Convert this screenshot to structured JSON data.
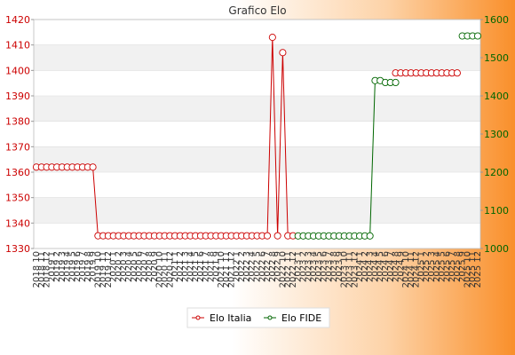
{
  "chart_data": {
    "type": "line",
    "title": "Grafico Elo",
    "x_labels": [
      "2018 10",
      "2018 11",
      "2018 12",
      "2019 1",
      "2019 2",
      "2019 3",
      "2019 4",
      "2019 5",
      "2019 6",
      "2019 7",
      "2019 8",
      "2019 9",
      "2019 10",
      "2019 11",
      "2019 12",
      "2020 1",
      "2020 2",
      "2020 3",
      "2020 4",
      "2020 5",
      "2020 6",
      "2020 7",
      "2020 8",
      "2020 9",
      "2020 10",
      "2020 11",
      "2020 12",
      "2021 1",
      "2021 2",
      "2021 3",
      "2021 4",
      "2021 5",
      "2021 6",
      "2021 7",
      "2021 8",
      "2021 9",
      "2021 10",
      "2021 11",
      "2021 12",
      "2022 1",
      "2022 2",
      "2022 3",
      "2022 4",
      "2022 5",
      "2022 6",
      "2022 7",
      "2022 8",
      "2022 9",
      "2022 10",
      "2022 11",
      "2022 12",
      "2023 1",
      "2023 2",
      "2023 3",
      "2023 4",
      "2023 5",
      "2023 6",
      "2023 7",
      "2023 8",
      "2023 9",
      "2023 10",
      "2023 11",
      "2023 12",
      "2024 1",
      "2024 2",
      "2024 3",
      "2024 4",
      "2024 5",
      "2024 6",
      "2024 7",
      "2024 8",
      "2024 9",
      "2024 10",
      "2024 11",
      "2024 12",
      "2025 1",
      "2025 2",
      "2025 3",
      "2025 4",
      "2025 5",
      "2025 6",
      "2025 7",
      "2025 8",
      "2025 9",
      "2025 10",
      "2025 11",
      "2025 12"
    ],
    "series": [
      {
        "name": "Elo Italia",
        "axis": "left",
        "color": "#cc0000",
        "values": [
          1362,
          1362,
          1362,
          1362,
          1362,
          1362,
          1362,
          1362,
          1362,
          1362,
          1362,
          1362,
          1335,
          1335,
          1335,
          1335,
          1335,
          1335,
          1335,
          1335,
          1335,
          1335,
          1335,
          1335,
          1335,
          1335,
          1335,
          1335,
          1335,
          1335,
          1335,
          1335,
          1335,
          1335,
          1335,
          1335,
          1335,
          1335,
          1335,
          1335,
          1335,
          1335,
          1335,
          1335,
          1335,
          1335,
          1413,
          1335,
          1407,
          1335,
          1335,
          null,
          null,
          null,
          null,
          null,
          null,
          null,
          null,
          null,
          null,
          null,
          null,
          null,
          null,
          null,
          null,
          null,
          null,
          null,
          1399,
          1399,
          1399,
          1399,
          1399,
          1399,
          1399,
          1399,
          1399,
          1399,
          1399,
          1399,
          1399,
          null,
          null,
          null,
          null
        ]
      },
      {
        "name": "Elo FIDE",
        "axis": "right",
        "color": "#006600",
        "values": [
          null,
          null,
          null,
          null,
          null,
          null,
          null,
          null,
          null,
          null,
          null,
          null,
          null,
          null,
          null,
          null,
          null,
          null,
          null,
          null,
          null,
          null,
          null,
          null,
          null,
          null,
          null,
          null,
          null,
          null,
          null,
          null,
          null,
          null,
          null,
          null,
          null,
          null,
          null,
          null,
          null,
          null,
          null,
          null,
          null,
          null,
          null,
          null,
          null,
          null,
          null,
          1033,
          1033,
          1033,
          1033,
          1033,
          1033,
          1033,
          1033,
          1033,
          1033,
          1033,
          1033,
          1033,
          1033,
          1033,
          1440,
          1440,
          1435,
          1435,
          1435,
          null,
          null,
          null,
          null,
          null,
          null,
          null,
          null,
          null,
          null,
          null,
          null,
          1557,
          1557,
          1557,
          1557
        ]
      }
    ],
    "y_left": {
      "min": 1330,
      "max": 1420,
      "step": 10
    },
    "y_right": {
      "min": 1000,
      "max": 1600,
      "step": 100
    },
    "legend_position": "bottom",
    "grid": "horizontal alternating bands"
  }
}
